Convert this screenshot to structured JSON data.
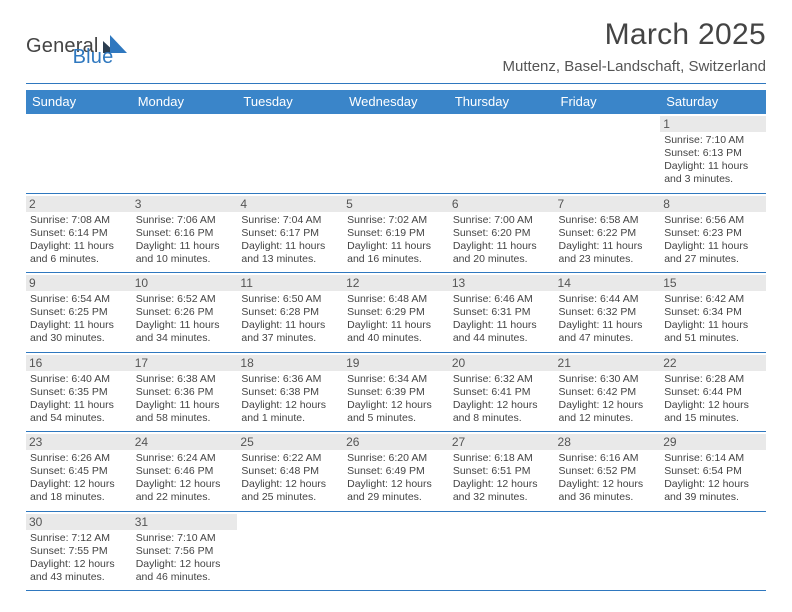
{
  "logo": {
    "word1": "General",
    "word2": "Blue"
  },
  "title": "March 2025",
  "location": "Muttenz, Basel-Landschaft, Switzerland",
  "colors": {
    "header_bg": "#3a85c9",
    "header_text": "#ffffff",
    "rule": "#2f78bf",
    "daynum_bg": "#e9e9e9",
    "body_text": "#444444",
    "logo_blue": "#2f78bf"
  },
  "table": {
    "columns": [
      "Sunday",
      "Monday",
      "Tuesday",
      "Wednesday",
      "Thursday",
      "Friday",
      "Saturday"
    ],
    "weeks": [
      [
        null,
        null,
        null,
        null,
        null,
        null,
        {
          "n": "1",
          "sr": "7:10 AM",
          "ss": "6:13 PM",
          "dl": "11 hours and 3 minutes."
        }
      ],
      [
        {
          "n": "2",
          "sr": "7:08 AM",
          "ss": "6:14 PM",
          "dl": "11 hours and 6 minutes."
        },
        {
          "n": "3",
          "sr": "7:06 AM",
          "ss": "6:16 PM",
          "dl": "11 hours and 10 minutes."
        },
        {
          "n": "4",
          "sr": "7:04 AM",
          "ss": "6:17 PM",
          "dl": "11 hours and 13 minutes."
        },
        {
          "n": "5",
          "sr": "7:02 AM",
          "ss": "6:19 PM",
          "dl": "11 hours and 16 minutes."
        },
        {
          "n": "6",
          "sr": "7:00 AM",
          "ss": "6:20 PM",
          "dl": "11 hours and 20 minutes."
        },
        {
          "n": "7",
          "sr": "6:58 AM",
          "ss": "6:22 PM",
          "dl": "11 hours and 23 minutes."
        },
        {
          "n": "8",
          "sr": "6:56 AM",
          "ss": "6:23 PM",
          "dl": "11 hours and 27 minutes."
        }
      ],
      [
        {
          "n": "9",
          "sr": "6:54 AM",
          "ss": "6:25 PM",
          "dl": "11 hours and 30 minutes."
        },
        {
          "n": "10",
          "sr": "6:52 AM",
          "ss": "6:26 PM",
          "dl": "11 hours and 34 minutes."
        },
        {
          "n": "11",
          "sr": "6:50 AM",
          "ss": "6:28 PM",
          "dl": "11 hours and 37 minutes."
        },
        {
          "n": "12",
          "sr": "6:48 AM",
          "ss": "6:29 PM",
          "dl": "11 hours and 40 minutes."
        },
        {
          "n": "13",
          "sr": "6:46 AM",
          "ss": "6:31 PM",
          "dl": "11 hours and 44 minutes."
        },
        {
          "n": "14",
          "sr": "6:44 AM",
          "ss": "6:32 PM",
          "dl": "11 hours and 47 minutes."
        },
        {
          "n": "15",
          "sr": "6:42 AM",
          "ss": "6:34 PM",
          "dl": "11 hours and 51 minutes."
        }
      ],
      [
        {
          "n": "16",
          "sr": "6:40 AM",
          "ss": "6:35 PM",
          "dl": "11 hours and 54 minutes."
        },
        {
          "n": "17",
          "sr": "6:38 AM",
          "ss": "6:36 PM",
          "dl": "11 hours and 58 minutes."
        },
        {
          "n": "18",
          "sr": "6:36 AM",
          "ss": "6:38 PM",
          "dl": "12 hours and 1 minute."
        },
        {
          "n": "19",
          "sr": "6:34 AM",
          "ss": "6:39 PM",
          "dl": "12 hours and 5 minutes."
        },
        {
          "n": "20",
          "sr": "6:32 AM",
          "ss": "6:41 PM",
          "dl": "12 hours and 8 minutes."
        },
        {
          "n": "21",
          "sr": "6:30 AM",
          "ss": "6:42 PM",
          "dl": "12 hours and 12 minutes."
        },
        {
          "n": "22",
          "sr": "6:28 AM",
          "ss": "6:44 PM",
          "dl": "12 hours and 15 minutes."
        }
      ],
      [
        {
          "n": "23",
          "sr": "6:26 AM",
          "ss": "6:45 PM",
          "dl": "12 hours and 18 minutes."
        },
        {
          "n": "24",
          "sr": "6:24 AM",
          "ss": "6:46 PM",
          "dl": "12 hours and 22 minutes."
        },
        {
          "n": "25",
          "sr": "6:22 AM",
          "ss": "6:48 PM",
          "dl": "12 hours and 25 minutes."
        },
        {
          "n": "26",
          "sr": "6:20 AM",
          "ss": "6:49 PM",
          "dl": "12 hours and 29 minutes."
        },
        {
          "n": "27",
          "sr": "6:18 AM",
          "ss": "6:51 PM",
          "dl": "12 hours and 32 minutes."
        },
        {
          "n": "28",
          "sr": "6:16 AM",
          "ss": "6:52 PM",
          "dl": "12 hours and 36 minutes."
        },
        {
          "n": "29",
          "sr": "6:14 AM",
          "ss": "6:54 PM",
          "dl": "12 hours and 39 minutes."
        }
      ],
      [
        {
          "n": "30",
          "sr": "7:12 AM",
          "ss": "7:55 PM",
          "dl": "12 hours and 43 minutes."
        },
        {
          "n": "31",
          "sr": "7:10 AM",
          "ss": "7:56 PM",
          "dl": "12 hours and 46 minutes."
        },
        null,
        null,
        null,
        null,
        null
      ]
    ]
  },
  "labels": {
    "sunrise": "Sunrise:",
    "sunset": "Sunset:",
    "daylight": "Daylight:"
  }
}
